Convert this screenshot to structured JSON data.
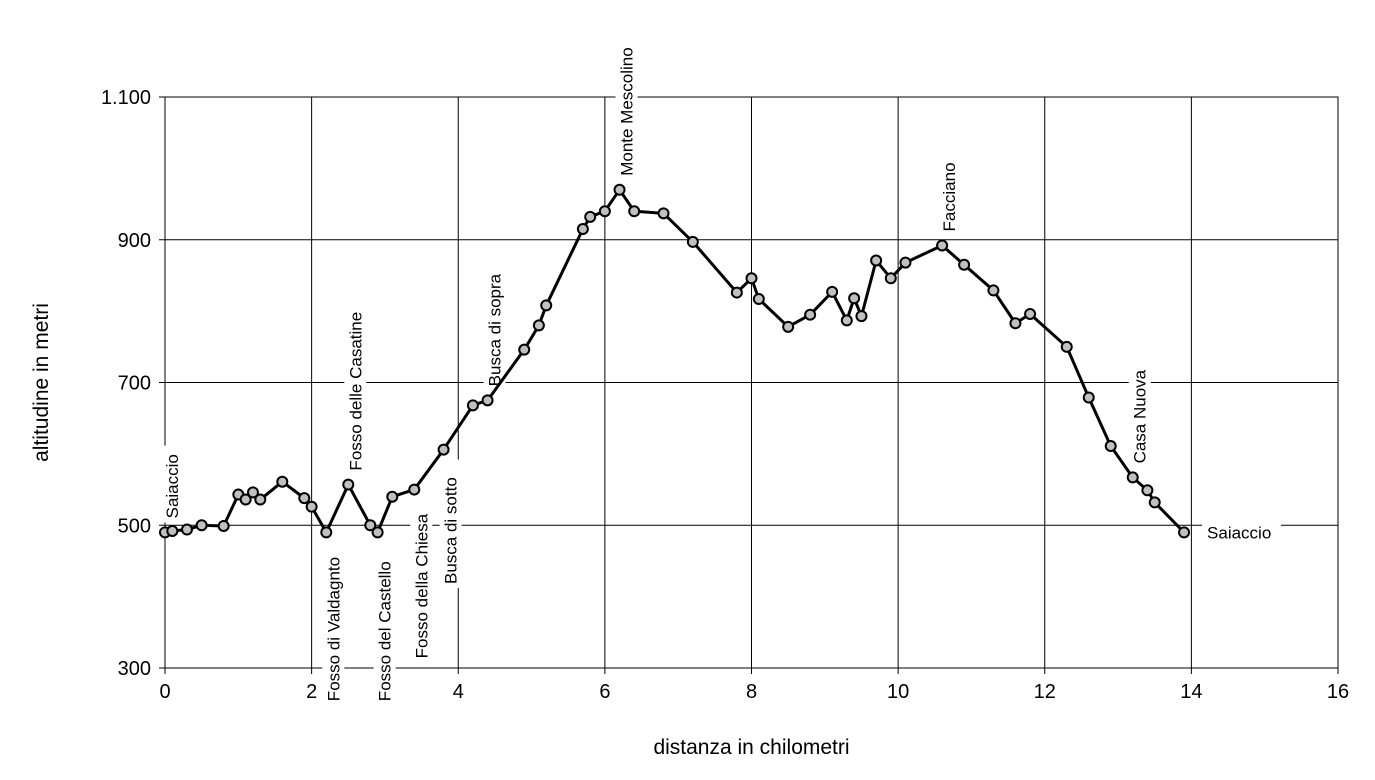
{
  "chart_data": {
    "type": "line",
    "xlabel": "distanza in chilometri",
    "ylabel": "altitudine  in metri",
    "xlim": [
      0,
      16
    ],
    "ylim": [
      300,
      1100
    ],
    "xticks": [
      0,
      2,
      4,
      6,
      8,
      10,
      12,
      14,
      16
    ],
    "xtick_labels": [
      "0",
      "2",
      "4",
      "6",
      "8",
      "10",
      "12",
      "14",
      "16"
    ],
    "yticks": [
      300,
      500,
      700,
      900,
      1100
    ],
    "ytick_labels": [
      "300",
      "500",
      "700",
      "900",
      "1.100"
    ],
    "grid": true,
    "series": [
      {
        "x": [
          0.0,
          0.1,
          0.3,
          0.5,
          0.8,
          1.0,
          1.1,
          1.2,
          1.3,
          1.6,
          1.9,
          2.0,
          2.2,
          2.5,
          2.8,
          2.9,
          3.1,
          3.4,
          3.8,
          4.2,
          4.4,
          4.9,
          5.1,
          5.2,
          5.7,
          5.8,
          6.0,
          6.2,
          6.4,
          6.8,
          7.2,
          7.8,
          8.0,
          8.1,
          8.5,
          8.8,
          9.1,
          9.3,
          9.4,
          9.5,
          9.7,
          9.9,
          10.1,
          10.6,
          10.9,
          11.3,
          11.6,
          11.8,
          12.3,
          12.6,
          12.9,
          13.2,
          13.4,
          13.5,
          13.9
        ],
        "values": [
          490,
          492,
          494,
          500,
          499,
          543,
          536,
          546,
          536,
          561,
          538,
          526,
          490,
          557,
          500,
          490,
          540,
          550,
          606,
          668,
          675,
          746,
          780,
          808,
          915,
          932,
          940,
          970,
          940,
          937,
          897,
          826,
          846,
          817,
          778,
          795,
          827,
          787,
          818,
          793,
          871,
          846,
          868,
          892,
          865,
          829,
          783,
          796,
          750,
          679,
          611,
          567,
          549,
          532,
          490
        ]
      }
    ],
    "annotations": [
      {
        "text": "Saiaccio",
        "x": 0.0,
        "y": 490,
        "dir": "up"
      },
      {
        "text": "Fosso di Valdagnto",
        "x": 2.2,
        "y": 490,
        "dir": "down"
      },
      {
        "text": "Fosso delle Casatine",
        "x": 2.5,
        "y": 557,
        "dir": "up"
      },
      {
        "text": "Fosso del Castello",
        "x": 2.9,
        "y": 490,
        "dir": "down"
      },
      {
        "text": "Fosso della Chiesa",
        "x": 3.4,
        "y": 550,
        "dir": "down"
      },
      {
        "text": "Busca di sotto",
        "x": 3.8,
        "y": 606,
        "dir": "down"
      },
      {
        "text": "Busca di sopra",
        "x": 4.4,
        "y": 675,
        "dir": "up"
      },
      {
        "text": "Monte Mescolino",
        "x": 6.2,
        "y": 970,
        "dir": "up"
      },
      {
        "text": "Facciano",
        "x": 10.6,
        "y": 892,
        "dir": "up"
      },
      {
        "text": "Casa Nuova",
        "x": 13.2,
        "y": 567,
        "dir": "up"
      },
      {
        "text": "Saiaccio",
        "x": 13.9,
        "y": 490,
        "dir": "right"
      }
    ]
  }
}
